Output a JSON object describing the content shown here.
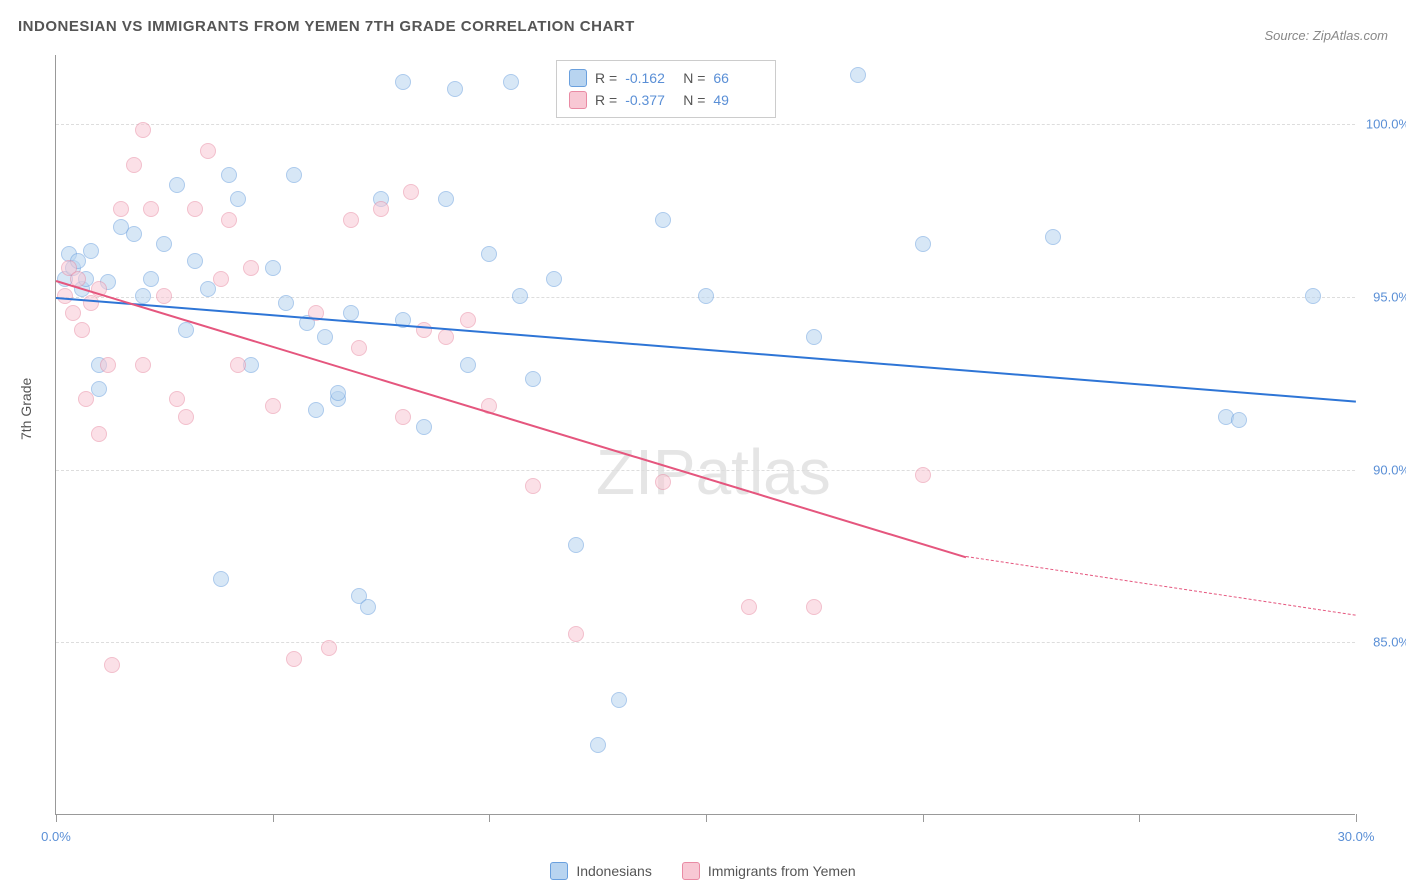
{
  "title": "INDONESIAN VS IMMIGRANTS FROM YEMEN 7TH GRADE CORRELATION CHART",
  "source": "Source: ZipAtlas.com",
  "y_axis_label": "7th Grade",
  "watermark": {
    "part1": "ZIP",
    "part2": "atlas"
  },
  "chart": {
    "type": "scatter",
    "xlim": [
      0,
      30
    ],
    "ylim": [
      80,
      102
    ],
    "y_ticks": [
      85.0,
      90.0,
      95.0,
      100.0
    ],
    "y_tick_labels": [
      "85.0%",
      "90.0%",
      "95.0%",
      "100.0%"
    ],
    "x_ticks": [
      0,
      5,
      10,
      15,
      20,
      25,
      30
    ],
    "x_tick_labels": [
      "0.0%",
      "",
      "",
      "",
      "",
      "",
      "30.0%"
    ],
    "grid_color": "#dddddd",
    "background_color": "#ffffff",
    "axis_color": "#999999",
    "tick_label_color": "#5a8fd6",
    "point_radius": 8,
    "point_opacity": 0.55,
    "series": [
      {
        "name": "Indonesians",
        "fill": "#b8d4f0",
        "stroke": "#6aa0de",
        "line_color": "#2e75d6",
        "R": "-0.162",
        "N": "66",
        "trend": {
          "x1": 0,
          "y1": 95.0,
          "x2": 30,
          "y2": 92.0
        },
        "points": [
          [
            0.2,
            95.5
          ],
          [
            0.3,
            96.2
          ],
          [
            0.4,
            95.8
          ],
          [
            0.5,
            96.0
          ],
          [
            0.6,
            95.2
          ],
          [
            0.7,
            95.5
          ],
          [
            0.8,
            96.3
          ],
          [
            1.0,
            92.3
          ],
          [
            1.0,
            93.0
          ],
          [
            1.2,
            95.4
          ],
          [
            1.5,
            97.0
          ],
          [
            1.8,
            96.8
          ],
          [
            2.0,
            95.0
          ],
          [
            2.2,
            95.5
          ],
          [
            2.5,
            96.5
          ],
          [
            2.8,
            98.2
          ],
          [
            3.0,
            94.0
          ],
          [
            3.2,
            96.0
          ],
          [
            3.5,
            95.2
          ],
          [
            3.8,
            86.8
          ],
          [
            4.0,
            98.5
          ],
          [
            4.2,
            97.8
          ],
          [
            4.5,
            93.0
          ],
          [
            5.0,
            95.8
          ],
          [
            5.3,
            94.8
          ],
          [
            5.5,
            98.5
          ],
          [
            5.8,
            94.2
          ],
          [
            6.0,
            91.7
          ],
          [
            6.2,
            93.8
          ],
          [
            6.5,
            92.0
          ],
          [
            6.5,
            92.2
          ],
          [
            6.8,
            94.5
          ],
          [
            7.0,
            86.3
          ],
          [
            7.2,
            86.0
          ],
          [
            7.5,
            97.8
          ],
          [
            8.0,
            101.2
          ],
          [
            8.0,
            94.3
          ],
          [
            8.5,
            91.2
          ],
          [
            9.0,
            97.8
          ],
          [
            9.2,
            101.0
          ],
          [
            9.5,
            93.0
          ],
          [
            10.0,
            96.2
          ],
          [
            10.5,
            101.2
          ],
          [
            10.7,
            95.0
          ],
          [
            11.0,
            92.6
          ],
          [
            11.5,
            95.5
          ],
          [
            12.0,
            87.8
          ],
          [
            12.5,
            82.0
          ],
          [
            13.0,
            83.3
          ],
          [
            14.0,
            97.2
          ],
          [
            15.0,
            95.0
          ],
          [
            17.5,
            93.8
          ],
          [
            18.5,
            101.4
          ],
          [
            20.0,
            96.5
          ],
          [
            23.0,
            96.7
          ],
          [
            27.0,
            91.5
          ],
          [
            27.3,
            91.4
          ],
          [
            29.0,
            95.0
          ]
        ]
      },
      {
        "name": "Immigrants from Yemen",
        "fill": "#f8c8d4",
        "stroke": "#e98ba4",
        "line_color": "#e5567e",
        "R": "-0.377",
        "N": "49",
        "trend": {
          "x1": 0,
          "y1": 95.5,
          "x2": 21,
          "y2": 87.5
        },
        "trend_dash": {
          "x1": 21,
          "y1": 87.5,
          "x2": 30,
          "y2": 85.8
        },
        "points": [
          [
            0.2,
            95.0
          ],
          [
            0.3,
            95.8
          ],
          [
            0.4,
            94.5
          ],
          [
            0.5,
            95.5
          ],
          [
            0.6,
            94.0
          ],
          [
            0.7,
            92.0
          ],
          [
            0.8,
            94.8
          ],
          [
            1.0,
            91.0
          ],
          [
            1.0,
            95.2
          ],
          [
            1.2,
            93.0
          ],
          [
            1.3,
            84.3
          ],
          [
            1.5,
            97.5
          ],
          [
            1.8,
            98.8
          ],
          [
            2.0,
            99.8
          ],
          [
            2.0,
            93.0
          ],
          [
            2.2,
            97.5
          ],
          [
            2.5,
            95.0
          ],
          [
            2.8,
            92.0
          ],
          [
            3.0,
            91.5
          ],
          [
            3.2,
            97.5
          ],
          [
            3.5,
            99.2
          ],
          [
            3.8,
            95.5
          ],
          [
            4.0,
            97.2
          ],
          [
            4.2,
            93.0
          ],
          [
            4.5,
            95.8
          ],
          [
            5.0,
            91.8
          ],
          [
            5.5,
            84.5
          ],
          [
            6.0,
            94.5
          ],
          [
            6.3,
            84.8
          ],
          [
            6.8,
            97.2
          ],
          [
            7.0,
            93.5
          ],
          [
            7.5,
            97.5
          ],
          [
            8.0,
            91.5
          ],
          [
            8.2,
            98.0
          ],
          [
            8.5,
            94.0
          ],
          [
            9.0,
            93.8
          ],
          [
            9.5,
            94.3
          ],
          [
            10.0,
            91.8
          ],
          [
            11.0,
            89.5
          ],
          [
            12.0,
            85.2
          ],
          [
            14.0,
            89.6
          ],
          [
            16.0,
            86.0
          ],
          [
            17.5,
            86.0
          ],
          [
            20.0,
            89.8
          ]
        ]
      }
    ]
  },
  "bottom_legend": [
    {
      "label": "Indonesians",
      "fill": "#b8d4f0",
      "stroke": "#6aa0de"
    },
    {
      "label": "Immigrants from Yemen",
      "fill": "#f8c8d4",
      "stroke": "#e98ba4"
    }
  ]
}
